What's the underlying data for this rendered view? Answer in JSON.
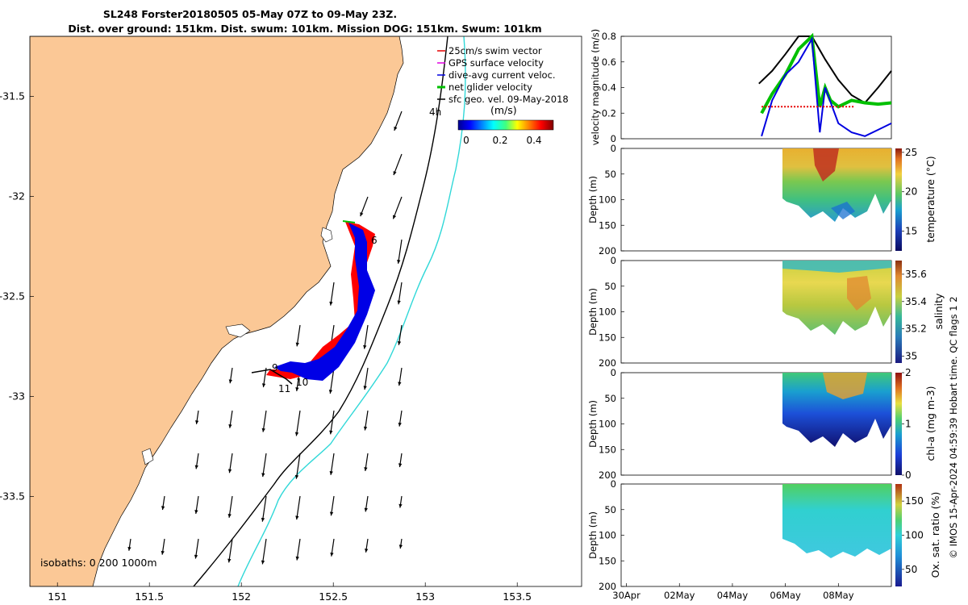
{
  "header": {
    "title_line1": "SL248 Forster20180505 05-May 07Z to 09-May 23Z.",
    "title_line2": "Dist. over ground: 151km. Dist. swum: 101km. Mission DOG: 151km. Swum: 101km"
  },
  "map": {
    "xticks": [
      "151",
      "151.5",
      "152",
      "152.5",
      "153",
      "153.5"
    ],
    "yticks": [
      "-31.5",
      "-32",
      "-32.5",
      "-33",
      "-33.5"
    ],
    "x_range": [
      150.85,
      153.85
    ],
    "y_range": [
      -33.95,
      -31.2
    ],
    "legend": [
      {
        "label": "25cm/s swim vector",
        "color": "#e60000"
      },
      {
        "label": "GPS surface velocity",
        "color": "#e000e0"
      },
      {
        "label": "dive-avg current veloc.",
        "color": "#0000e0"
      },
      {
        "label": "net glider velocity",
        "color": "#00c000"
      },
      {
        "label": "sfc geo. vel. 09-May-2018",
        "color": "#000000"
      }
    ],
    "hour_label": "4h",
    "colorbar": {
      "label": "(m/s)",
      "ticks": [
        "0",
        "0.2",
        "0.4"
      ],
      "range": [
        -0.05,
        0.5
      ]
    },
    "isobath_label": "isobaths: 0   200  1000m",
    "day_labels": [
      "6",
      "9",
      "10",
      "11"
    ],
    "land_color": "#fbc896",
    "isobath_color_200": "#000000",
    "isobath_color_1000": "#30d8d8"
  },
  "right_panels": {
    "shared_xticks": [
      "30Apr",
      "02May",
      "04May",
      "06May",
      "08May"
    ],
    "depth_ticks": [
      "0",
      "50",
      "100",
      "150",
      "200"
    ],
    "depth_label": "Depth (m)"
  },
  "side_text": "© IMOS 15-Apr-2024 04:59:39 Hobart time. QC flags 1  2",
  "chart_data": [
    {
      "type": "line",
      "name": "glider velocity time series",
      "ylabel": "velocity magnitude (m/s)",
      "ylim": [
        0,
        0.8
      ],
      "yticks": [
        "0",
        "0.2",
        "0.4",
        "0.6",
        "0.8"
      ],
      "x_days": "days from 29-Apr-2018",
      "series": [
        {
          "name": "sfc geo. vel.",
          "color": "#000000",
          "x": [
            6.0,
            6.5,
            7.0,
            7.5,
            8.0,
            8.5,
            9.0,
            9.5,
            10.0,
            10.5,
            11.0
          ],
          "values": [
            0.43,
            0.53,
            0.66,
            0.8,
            0.8,
            0.62,
            0.46,
            0.34,
            0.28,
            0.4,
            0.53
          ]
        },
        {
          "name": "net glider velocity",
          "color": "#00c000",
          "x": [
            6.1,
            6.5,
            7.0,
            7.5,
            8.0,
            8.3,
            8.5,
            8.7,
            9.0,
            9.5,
            10.0,
            10.5,
            11.0
          ],
          "values": [
            0.2,
            0.35,
            0.5,
            0.7,
            0.8,
            0.25,
            0.4,
            0.3,
            0.25,
            0.3,
            0.28,
            0.27,
            0.28
          ]
        },
        {
          "name": "dive-avg current veloc.",
          "color": "#0000e0",
          "x": [
            6.1,
            6.5,
            7.0,
            7.5,
            8.0,
            8.3,
            8.5,
            9.0,
            9.5,
            10.0,
            10.5,
            11.0
          ],
          "values": [
            0.02,
            0.3,
            0.5,
            0.6,
            0.78,
            0.05,
            0.4,
            0.12,
            0.05,
            0.02,
            0.07,
            0.12
          ]
        },
        {
          "name": "25cm/s swim vector",
          "color": "#e60000",
          "x": [
            6.1,
            8.6,
            9.6
          ],
          "values": [
            0.25,
            0.25,
            0.25
          ]
        }
      ]
    },
    {
      "type": "heatmap",
      "name": "temperature section",
      "ylabel": "Depth (m)",
      "ylim": [
        200,
        0
      ],
      "colorbar_label": "temperature (°C)",
      "colorbar_ticks": [
        "15",
        "20",
        "25"
      ],
      "colorbar_range": [
        12.5,
        25.5
      ],
      "time_coverage": [
        "05-May",
        "09-May"
      ],
      "max_depth_m": 145,
      "surface_value": 23,
      "bottom_value": 16
    },
    {
      "type": "heatmap",
      "name": "salinity section",
      "ylabel": "Depth (m)",
      "ylim": [
        200,
        0
      ],
      "colorbar_label": "salinity",
      "colorbar_ticks": [
        "35",
        "35.2",
        "35.4",
        "35.6"
      ],
      "colorbar_range": [
        34.95,
        35.7
      ],
      "time_coverage": [
        "05-May",
        "09-May"
      ],
      "max_depth_m": 145,
      "surface_value": 35.3,
      "bottom_value": 35.35
    },
    {
      "type": "heatmap",
      "name": "chlorophyll section",
      "ylabel": "Depth (m)",
      "ylim": [
        200,
        0
      ],
      "colorbar_label": "chl-a (mg m-3)",
      "colorbar_ticks": [
        "0",
        "1",
        "2"
      ],
      "colorbar_range": [
        0,
        2
      ],
      "time_coverage": [
        "05-May",
        "09-May"
      ],
      "max_depth_m": 145,
      "surface_value": 1.3,
      "bottom_value": 0.1
    },
    {
      "type": "heatmap",
      "name": "oxygen section",
      "ylabel": "Depth (m)",
      "ylim": [
        200,
        0
      ],
      "colorbar_label": "Ox. sat. ratio (%)",
      "colorbar_ticks": [
        "50",
        "100",
        "150"
      ],
      "colorbar_range": [
        25,
        175
      ],
      "time_coverage": [
        "05-May",
        "09-May"
      ],
      "max_depth_m": 145,
      "surface_value": 115,
      "bottom_value": 90
    }
  ]
}
